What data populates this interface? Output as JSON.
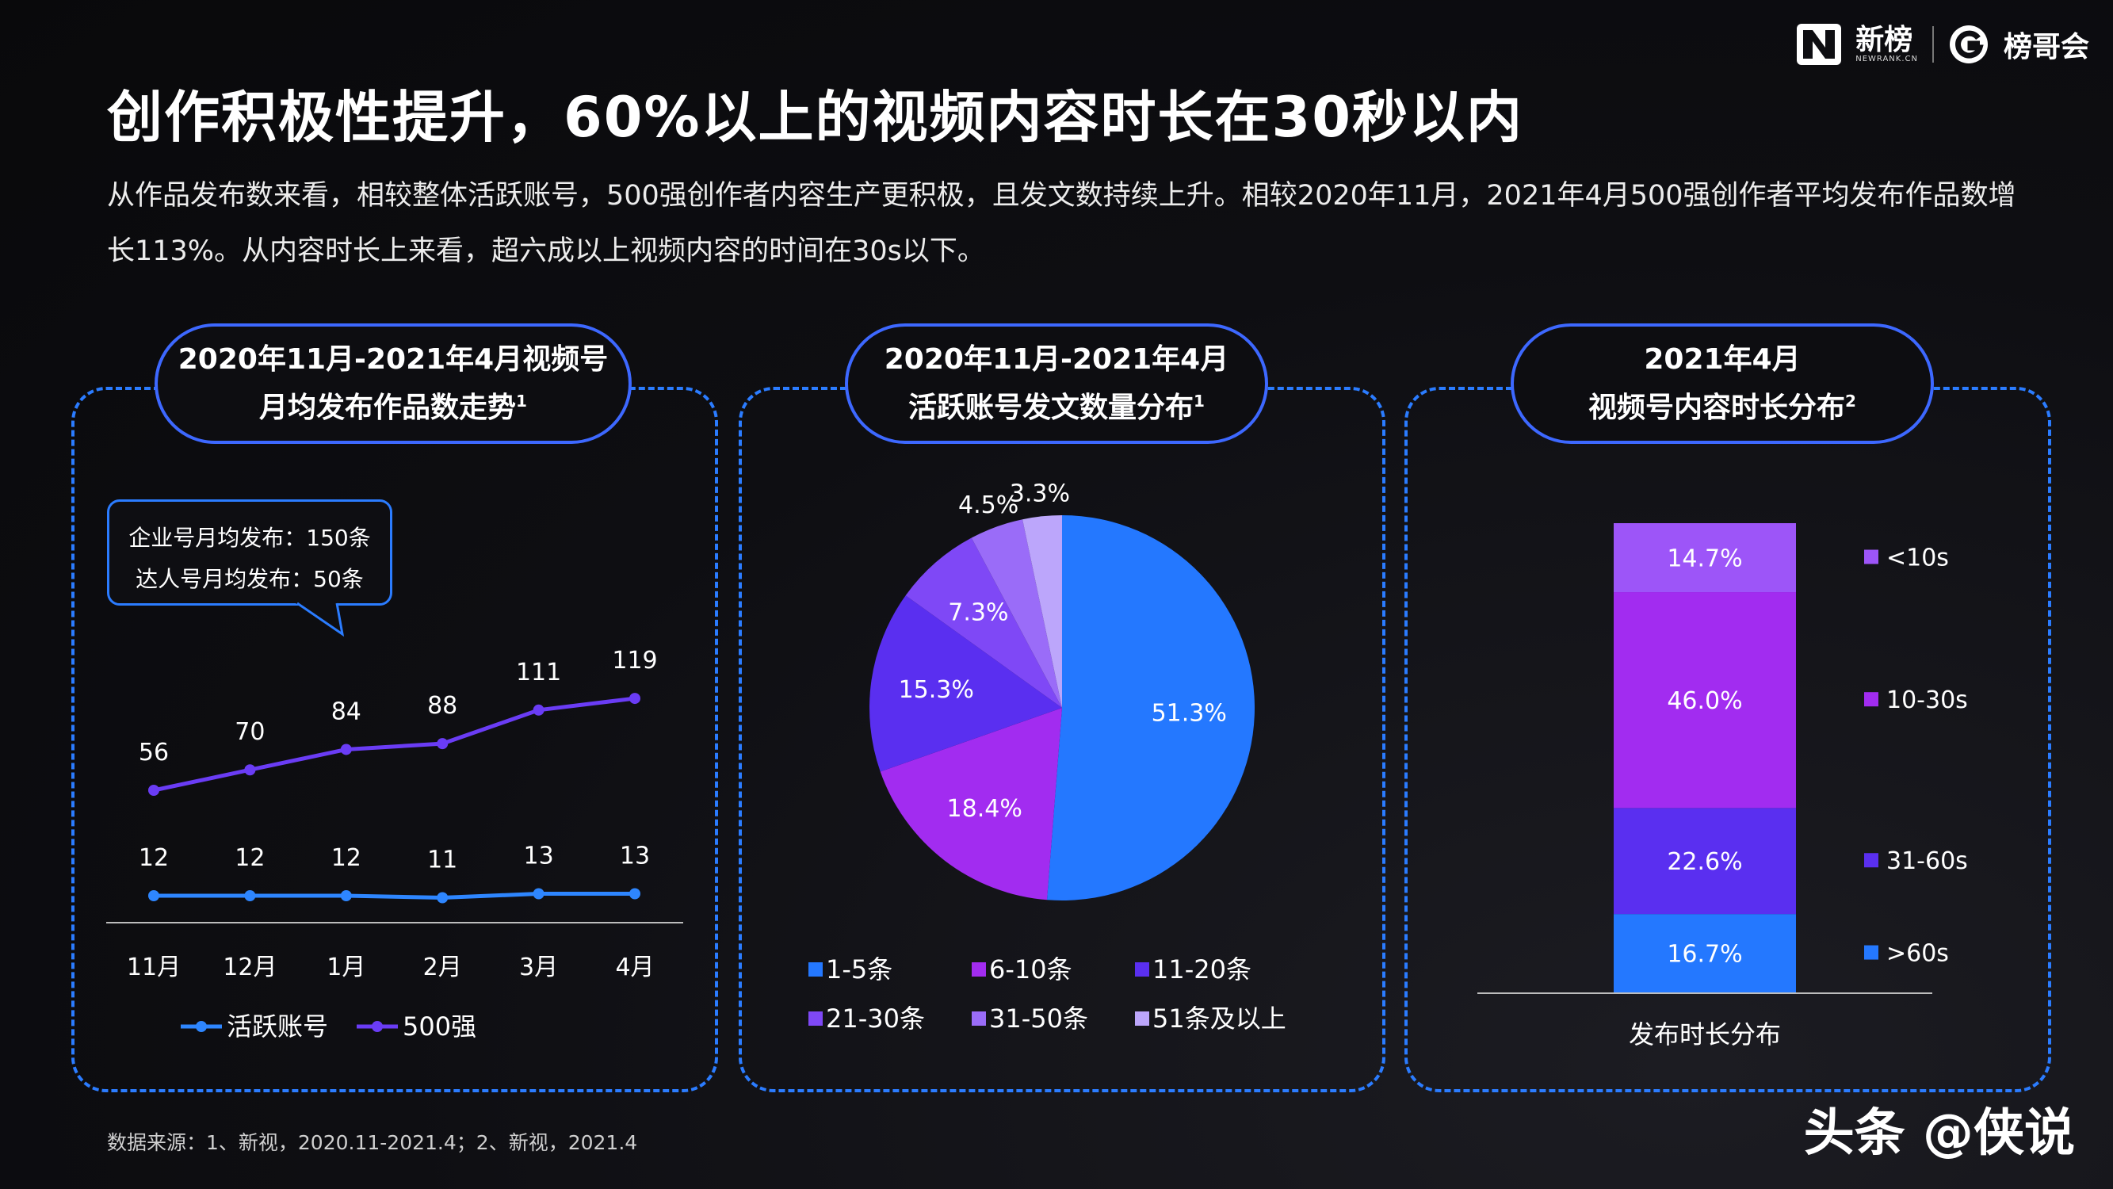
{
  "header": {
    "brand_newrank": "新榜",
    "brand_newrank_sub": "NEWRANK.CN",
    "brand_bangge": "榜哥会",
    "title": "创作积极性提升，60%以上的视频内容时长在30秒以内",
    "description": "从作品发布数来看，相较整体活跃账号，500强创作者内容生产更积极，且发文数持续上升。相较2020年11月，2021年4月500强创作者平均发布作品数增长113%。从内容时长上来看，超六成以上视频内容的时间在30s以下。"
  },
  "panels": [
    {
      "title_line1": "2020年11月-2021年4月视频号",
      "title_line2": "月均发布作品数走势",
      "note": "1"
    },
    {
      "title_line1": "2020年11月-2021年4月",
      "title_line2": "活跃账号发文数量分布",
      "note": "1"
    },
    {
      "title_line1": "2021年4月",
      "title_line2": "视频号内容时长分布",
      "note": "2"
    }
  ],
  "callout": {
    "line1": "企业号月均发布：150条",
    "line2": "达人号月均发布：50条"
  },
  "colors": {
    "accent_blue": "#2b7cff",
    "line_active": "#2e86ff",
    "line_top500": "#6a3cf5",
    "pie": [
      "#2478ff",
      "#a22cf0",
      "#5a2ff0",
      "#7f48f6",
      "#9a6cf8",
      "#bca6fb"
    ],
    "bar": [
      "#2478ff",
      "#5a2ff0",
      "#a22cf0",
      "#9d55f8"
    ]
  },
  "chart_data": [
    {
      "type": "line",
      "categories": [
        "11月",
        "12月",
        "1月",
        "2月",
        "3月",
        "4月"
      ],
      "series": [
        {
          "name": "活跃账号",
          "values": [
            12,
            12,
            12,
            11,
            13,
            13
          ]
        },
        {
          "name": "500强",
          "values": [
            56,
            70,
            84,
            88,
            111,
            119
          ]
        }
      ]
    },
    {
      "type": "pie",
      "labels": [
        "1-5条",
        "6-10条",
        "11-20条",
        "21-30条",
        "31-50条",
        "51条及以上"
      ],
      "values": [
        51.3,
        18.4,
        15.3,
        7.3,
        4.5,
        3.3
      ],
      "value_labels": [
        "51.3%",
        "18.4%",
        "15.3%",
        "7.3%",
        "4.5%",
        "3.3%"
      ]
    },
    {
      "type": "bar",
      "stacked": true,
      "xlabel": "发布时长分布",
      "segments_bottom_to_top": [
        {
          "name": ">60s",
          "value": 16.7,
          "label": "16.7%"
        },
        {
          "name": "31-60s",
          "value": 22.6,
          "label": "22.6%"
        },
        {
          "name": "10-30s",
          "value": 46.0,
          "label": "46.0%"
        },
        {
          "name": "<10s",
          "value": 14.7,
          "label": "14.7%"
        }
      ]
    }
  ],
  "footnote": "数据来源：1、新视，2020.11-2021.4；2、新视，2021.4",
  "watermark": "头条 @侠说"
}
